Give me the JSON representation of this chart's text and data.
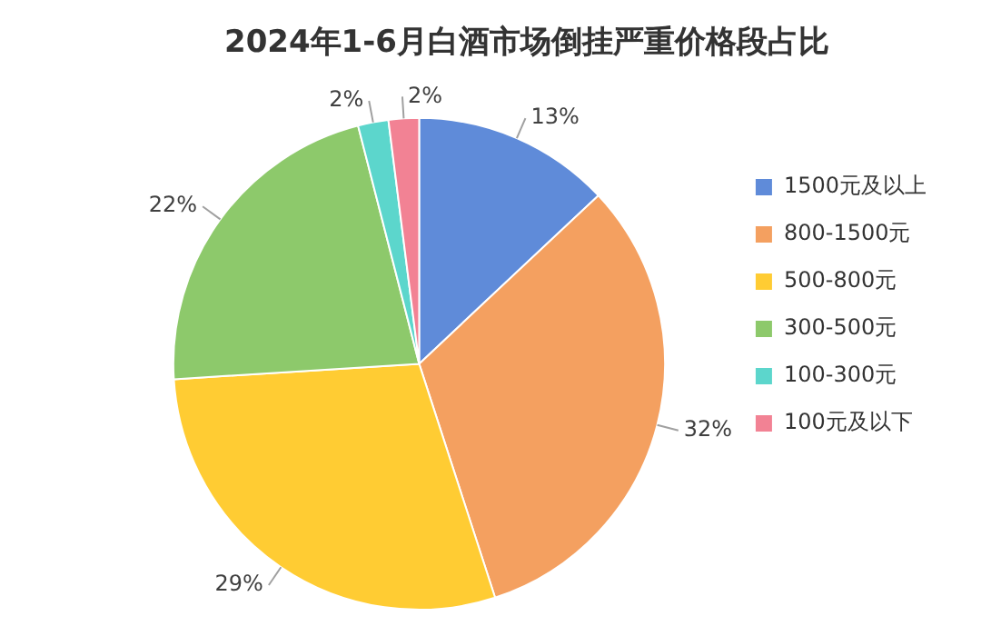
{
  "chart_data": {
    "type": "pie",
    "title": "2024年1-6月白酒市场倒挂严重价格段占比",
    "categories": [
      "1500元及以上",
      "800-1500元",
      "500-800元",
      "300-500元",
      "100-300元",
      "100元及以下"
    ],
    "values": [
      13,
      32,
      29,
      22,
      2,
      2
    ],
    "value_labels": [
      "13%",
      "32%",
      "29%",
      "22%",
      "2%",
      "2%"
    ],
    "colors": [
      "#5f8bd9",
      "#f4a060",
      "#ffcc33",
      "#8dc96b",
      "#5cd6cc",
      "#f28294"
    ],
    "legend": "right"
  }
}
